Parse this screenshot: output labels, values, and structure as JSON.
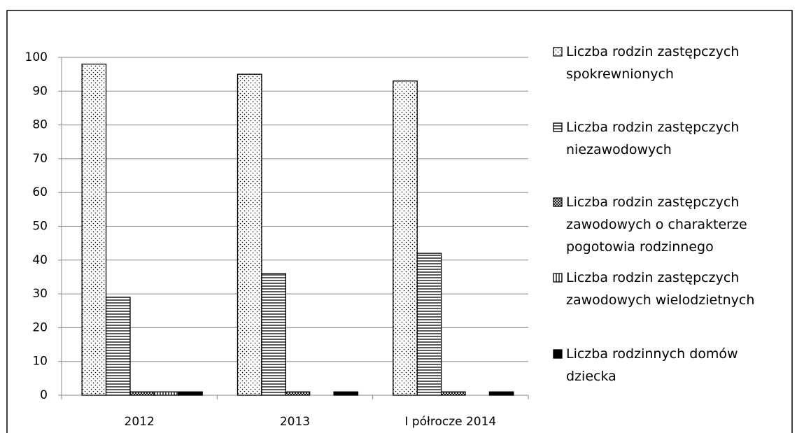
{
  "chart_data": {
    "type": "bar",
    "categories": [
      "2012",
      "2013",
      "I półrocze 2014"
    ],
    "series": [
      {
        "name": "Liczba rodzin zastępczych spokrewnionych",
        "color": "#ffffff",
        "pattern": "dots",
        "values": [
          98,
          95,
          93
        ]
      },
      {
        "name": "Liczba rodzin zastępczych niezawodowych",
        "color": "#ffffff",
        "pattern": "horizontal",
        "values": [
          29,
          36,
          42
        ]
      },
      {
        "name": "Liczba rodzin zastępczych zawodowych o charakterze pogotowia rodzinnego",
        "color": "#ffffff",
        "pattern": "crosshatch",
        "values": [
          1,
          1,
          1
        ]
      },
      {
        "name": "Liczba rodzin zastępczych zawodowych wielodzietnych",
        "color": "#ffffff",
        "pattern": "vertical",
        "values": [
          1,
          0,
          0
        ]
      },
      {
        "name": "Liczba rodzinnych domów dziecka",
        "color": "#000000",
        "pattern": "solid",
        "values": [
          1,
          1,
          1
        ]
      }
    ],
    "ylim": [
      0,
      100
    ],
    "yticks": [
      0,
      10,
      20,
      30,
      40,
      50,
      60,
      70,
      80,
      90,
      100
    ],
    "grid": true
  }
}
